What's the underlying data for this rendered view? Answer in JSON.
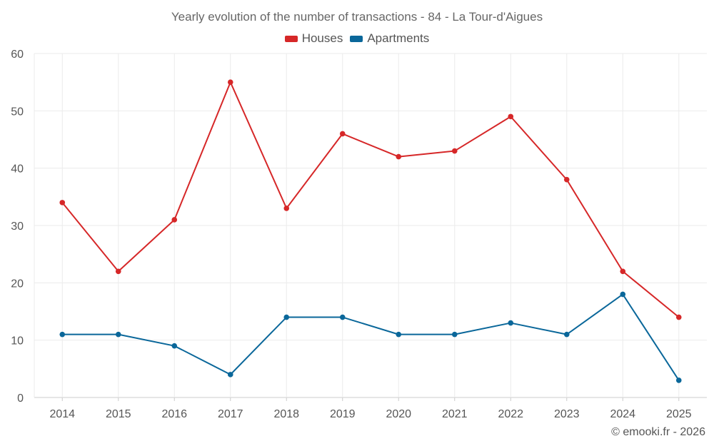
{
  "chart_data": {
    "type": "line",
    "title": "Yearly evolution of the number of transactions - 84 - La Tour-d'Aigues",
    "xlabel": "",
    "ylabel": "",
    "categories": [
      "2014",
      "2015",
      "2016",
      "2017",
      "2018",
      "2019",
      "2020",
      "2021",
      "2022",
      "2023",
      "2024",
      "2025"
    ],
    "ylim": [
      0,
      60
    ],
    "yticks": [
      0,
      10,
      20,
      30,
      40,
      50,
      60
    ],
    "grid": true,
    "legend": "top-center",
    "series": [
      {
        "name": "Houses",
        "color": "#d62728",
        "values": [
          34,
          22,
          31,
          55,
          33,
          46,
          42,
          43,
          49,
          38,
          22,
          14
        ]
      },
      {
        "name": "Apartments",
        "color": "#0a679a",
        "values": [
          11,
          11,
          9,
          4,
          14,
          14,
          11,
          11,
          13,
          11,
          18,
          3
        ]
      }
    ]
  },
  "credit": "© emooki.fr - 2026"
}
